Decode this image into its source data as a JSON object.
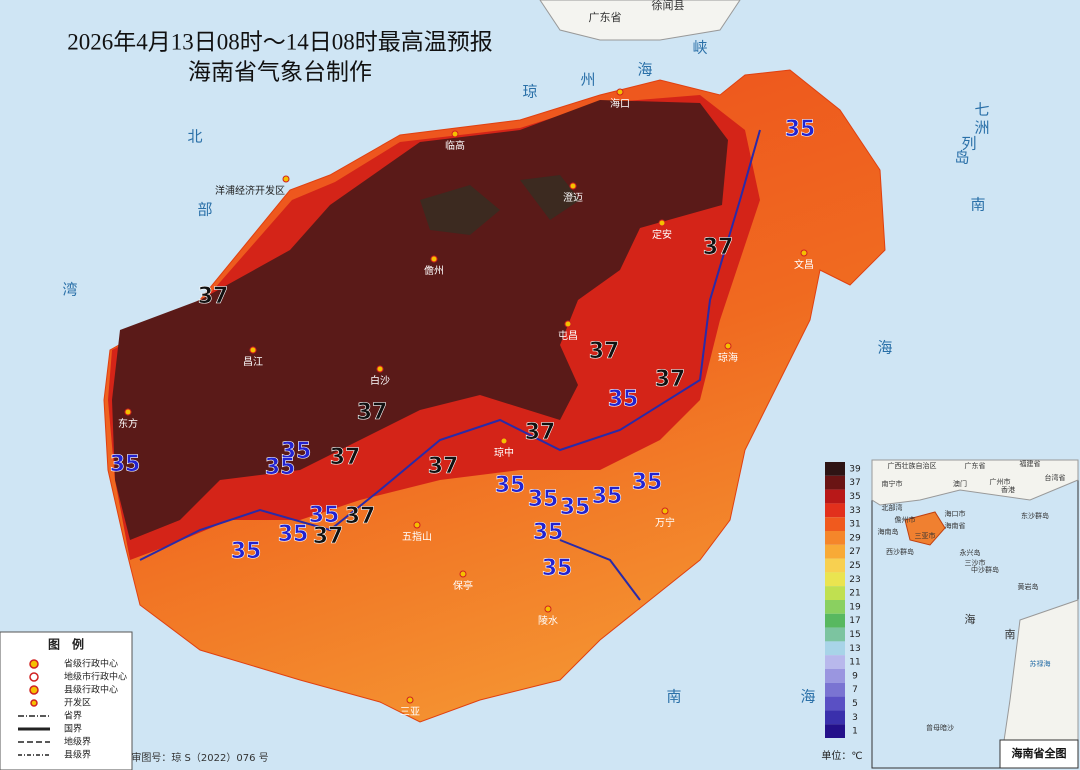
{
  "title": [
    "2026年4月13日08时～14日08时最高温预报",
    "海南省气象台制作"
  ],
  "sea_labels": [
    "北",
    "部",
    "湾",
    "琼",
    "州",
    "海",
    "峡",
    "七",
    "洲",
    "列",
    "岛",
    "南",
    "海",
    "南",
    "海",
    "广东省",
    "徐闻县"
  ],
  "places": [
    "海口",
    "临高",
    "洋浦经济开发区",
    "澄迈",
    "儋州",
    "定安",
    "文昌",
    "屯昌",
    "琼海",
    "昌江",
    "白沙",
    "东方",
    "琼中",
    "五指山",
    "万宁",
    "保亭",
    "陵水",
    "三亚"
  ],
  "contour_labels": [
    35,
    37,
    37,
    37,
    37,
    35,
    37,
    37,
    35,
    35,
    35,
    37,
    37,
    35,
    35,
    35,
    35,
    35,
    35,
    37,
    37,
    35,
    35,
    35,
    35
  ],
  "colorbar": {
    "ticks": [
      39,
      37,
      35,
      33,
      31,
      29,
      27,
      25,
      23,
      21,
      19,
      17,
      15,
      13,
      11,
      9,
      7,
      5,
      3,
      1
    ],
    "colors": [
      "#2e1414",
      "#6a1414",
      "#b81818",
      "#e2301c",
      "#f05a1e",
      "#f5862a",
      "#f8aa36",
      "#f8d050",
      "#eae450",
      "#c0e050",
      "#8ad060",
      "#58b860",
      "#7cc4a0",
      "#a8d4e8",
      "#b8b8ec",
      "#9a96e0",
      "#7a74d2",
      "#5a50c4",
      "#3a30ac",
      "#24108a"
    ],
    "unit": "单位：℃"
  },
  "legend": {
    "title": "图　例",
    "items": [
      "省级行政中心",
      "地级市行政中心",
      "县级行政中心",
      "开发区",
      "省界",
      "国界",
      "地级界",
      "县级界"
    ]
  },
  "approval": "审图号：琼 S（2022）076 号",
  "inset": {
    "title": "海南省全图",
    "labels": [
      "广西壮族自治区",
      "广东省",
      "福建省",
      "台湾省",
      "南宁市",
      "广州市",
      "澳门",
      "香港",
      "北部湾",
      "海口市",
      "儋州市",
      "三亚市",
      "海南岛",
      "海南省",
      "东沙群岛",
      "西沙群岛",
      "永兴岛",
      "三沙市",
      "中沙群岛",
      "黄岩岛",
      "南",
      "海",
      "苏禄海",
      "曾母暗沙"
    ]
  }
}
